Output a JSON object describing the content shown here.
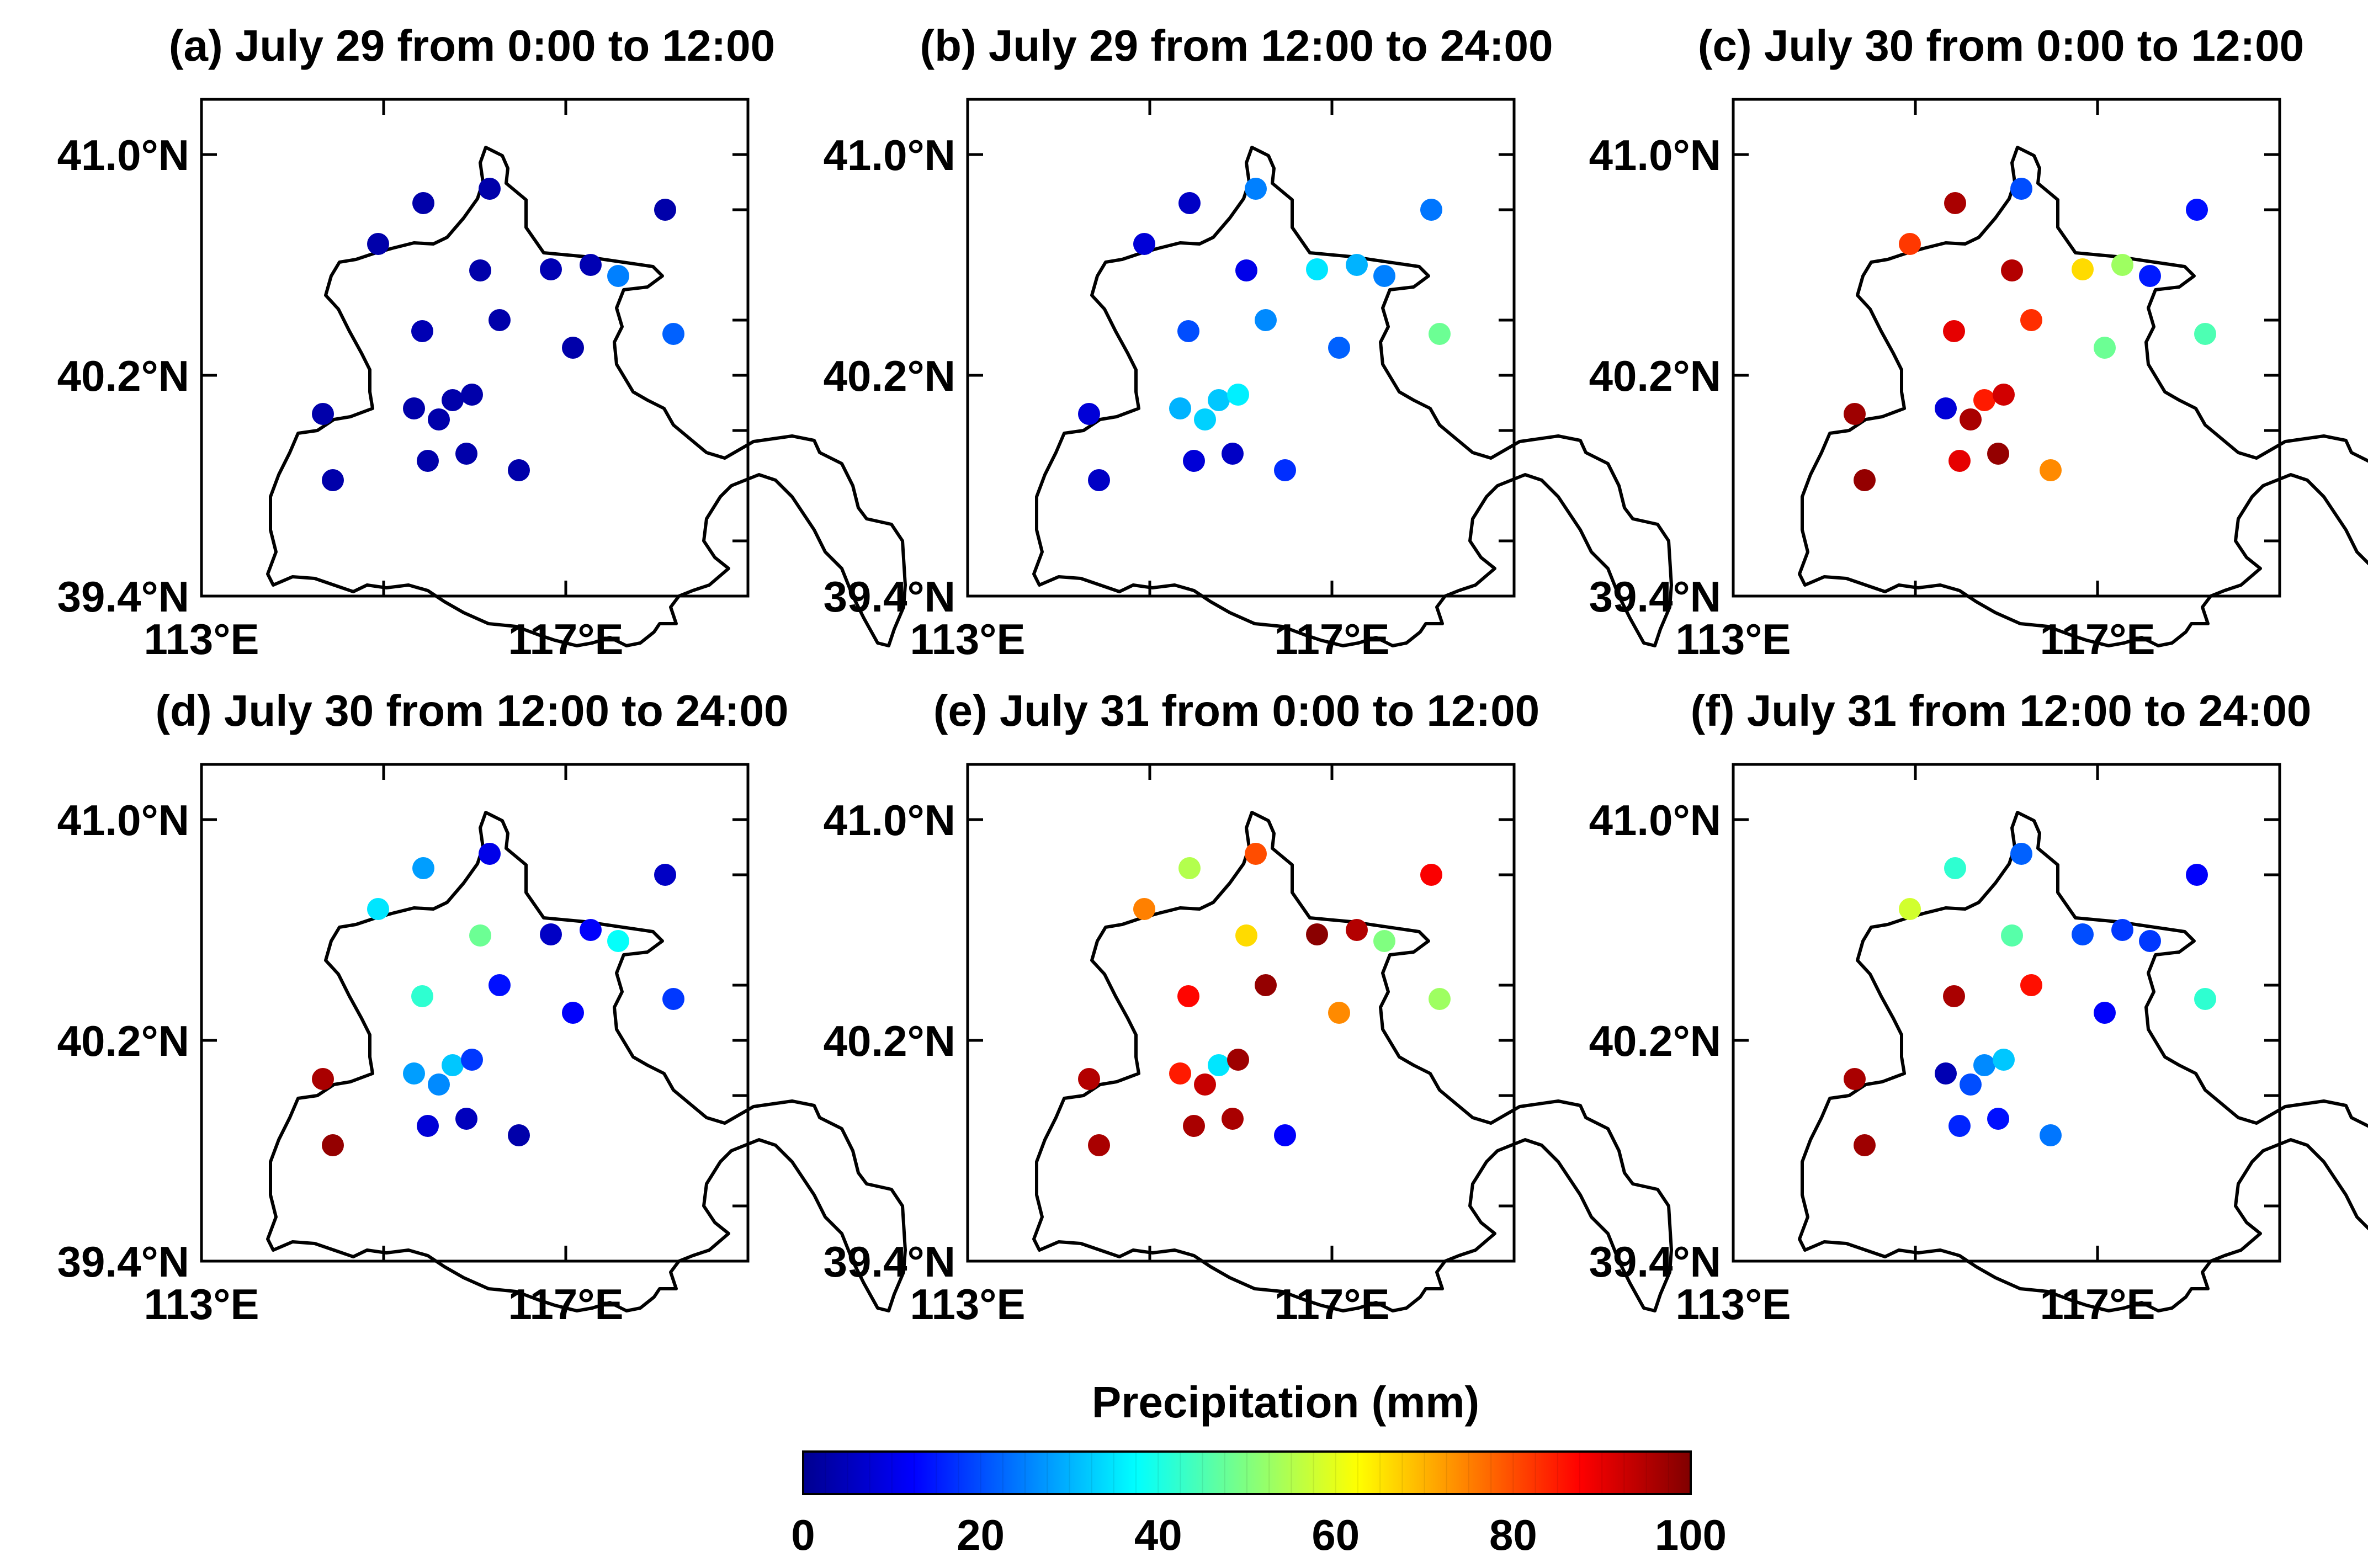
{
  "figure": {
    "colorbar_label": "Precipitation (mm)",
    "colorbar_ticks": [
      "0",
      "20",
      "40",
      "60",
      "80",
      "100"
    ],
    "colorbar_range": [
      0,
      100
    ],
    "colormap": [
      "#00008f",
      "#0000ff",
      "#0080ff",
      "#00ffff",
      "#80ff80",
      "#ffff00",
      "#ff8000",
      "#ff0000",
      "#800000"
    ]
  },
  "lon_labels": [
    "113°E",
    "117°E"
  ],
  "lat_labels": [
    "41.0°N",
    "40.2°N",
    "39.4°N"
  ],
  "panels": [
    {
      "title": "(a) July 29 from 0:00 to 12:00",
      "values": [
        3,
        3,
        3,
        3,
        3,
        4,
        3,
        4,
        4,
        3,
        3,
        25,
        3,
        22,
        3,
        3,
        3,
        3,
        3,
        3,
        3
      ]
    },
    {
      "title": "(b) July 29 from 12:00 to 24:00",
      "values": [
        8,
        6,
        8,
        6,
        10,
        20,
        26,
        35,
        30,
        25,
        22,
        25,
        24,
        48,
        30,
        32,
        33,
        36,
        6,
        8,
        17
      ]
    },
    {
      "title": "(c) July 30 from 0:00 to 12:00",
      "values": [
        97,
        98,
        82,
        96,
        95,
        90,
        83,
        66,
        53,
        20,
        48,
        15,
        14,
        45,
        8,
        85,
        96,
        92,
        98,
        90,
        74
      ]
    },
    {
      "title": "(d) July 30 from 12:00 to 24:00",
      "values": [
        96,
        98,
        35,
        28,
        48,
        42,
        14,
        6,
        12,
        10,
        12,
        38,
        6,
        18,
        28,
        32,
        26,
        18,
        5,
        8,
        3
      ]
    },
    {
      "title": "(e) July 31 from 0:00 to 12:00",
      "values": [
        95,
        96,
        75,
        55,
        66,
        87,
        98,
        99,
        95,
        80,
        74,
        50,
        88,
        53,
        85,
        35,
        93,
        97,
        96,
        96,
        12
      ]
    },
    {
      "title": "(f) July 31 from 12:00 to 24:00",
      "values": [
        96,
        97,
        58,
        42,
        46,
        96,
        86,
        20,
        18,
        22,
        12,
        18,
        12,
        42,
        4,
        26,
        20,
        32,
        14,
        16,
        24
      ]
    }
  ]
}
